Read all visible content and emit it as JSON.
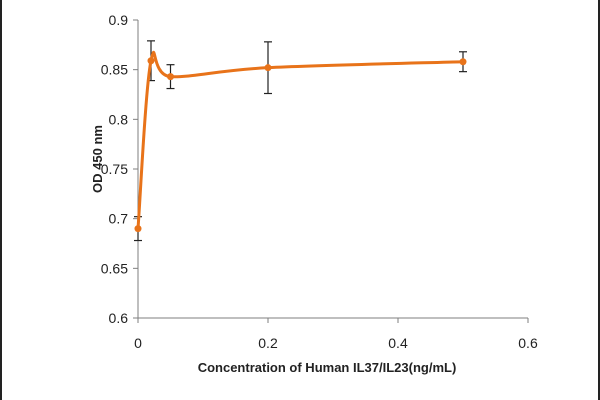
{
  "chart_data": {
    "type": "line",
    "title": "",
    "xlabel": "Concentration of Human IL37/IL23(ng/mL)",
    "ylabel": "OD 450 nm",
    "xlim": [
      0,
      0.6
    ],
    "ylim": [
      0.6,
      0.9
    ],
    "x_ticks": [
      "0",
      "0.2",
      "0.4",
      "0.6"
    ],
    "y_ticks": [
      "0.6",
      "0.65",
      "0.7",
      "0.75",
      "0.8",
      "0.85",
      "0.9"
    ],
    "grid": false,
    "legend": "none",
    "smooth": true,
    "series": [
      {
        "color": "#e8731a",
        "x": [
          0,
          0.02,
          0.05,
          0.2,
          0.5
        ],
        "y": [
          0.69,
          0.859,
          0.843,
          0.852,
          0.858
        ],
        "error": [
          0.012,
          0.02,
          0.012,
          0.026,
          0.01
        ]
      }
    ]
  }
}
